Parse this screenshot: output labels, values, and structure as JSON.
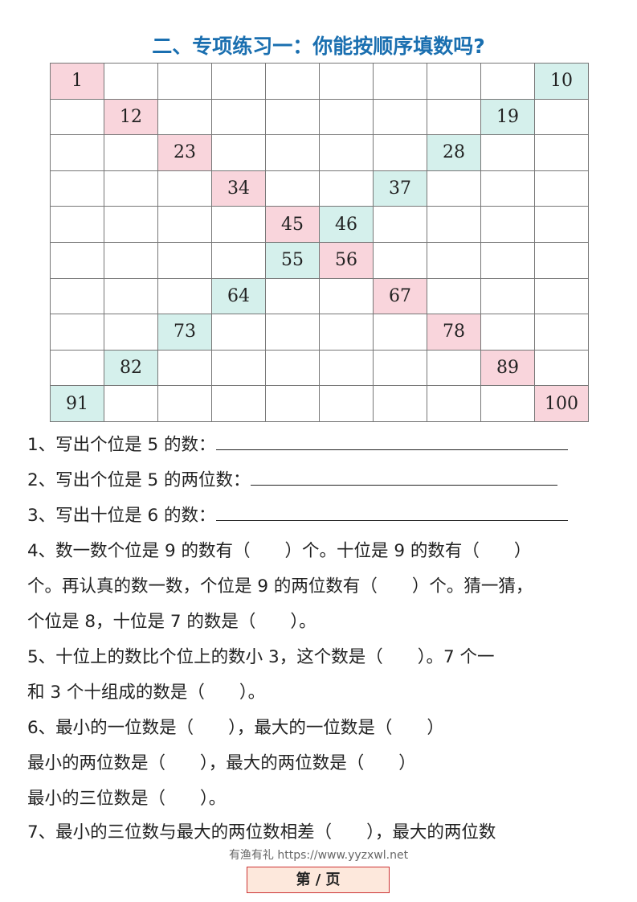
{
  "title": "二、专项练习一：你能按顺序填数吗?",
  "grid": {
    "rows": [
      [
        "1",
        "",
        "",
        "",
        "",
        "",
        "",
        "",
        "",
        "10"
      ],
      [
        "",
        "12",
        "",
        "",
        "",
        "",
        "",
        "",
        "19",
        ""
      ],
      [
        "",
        "",
        "23",
        "",
        "",
        "",
        "",
        "28",
        "",
        ""
      ],
      [
        "",
        "",
        "",
        "34",
        "",
        "",
        "37",
        "",
        "",
        ""
      ],
      [
        "",
        "",
        "",
        "",
        "45",
        "46",
        "",
        "",
        "",
        ""
      ],
      [
        "",
        "",
        "",
        "",
        "55",
        "56",
        "",
        "",
        "",
        ""
      ],
      [
        "",
        "",
        "",
        "64",
        "",
        "",
        "67",
        "",
        "",
        ""
      ],
      [
        "",
        "",
        "73",
        "",
        "",
        "",
        "",
        "78",
        "",
        ""
      ],
      [
        "",
        "82",
        "",
        "",
        "",
        "",
        "",
        "",
        "89",
        ""
      ],
      [
        "91",
        "",
        "",
        "",
        "",
        "",
        "",
        "",
        "",
        "100"
      ]
    ],
    "colors": {
      "diagonal": "#f9d5dc",
      "anti_diagonal": "#d5f0ec"
    }
  },
  "questions": [
    "1、写出个位是 5 的数：",
    "2、写出个位是 5 的两位数：",
    "3、写出十位是 6 的数：",
    "4、数一数个位是 9 的数有（　　）个。十位是 9 的数有（　　）",
    "个。再认真的数一数，个位是 9 的两位数有（　　）个。猜一猜，",
    "个位是 8，十位是 7 的数是（　　）。",
    "5、十位上的数比个位上的数小 3，这个数是（　　）。7 个一",
    "和 3 个十组成的数是（　　）。",
    "6、最小的一位数是（　　），最大的一位数是（　　）",
    "最小的两位数是（　　），最大的两位数是（　　）",
    "最小的三位数是（　　）。",
    "7、最小的三位数与最大的两位数相差（　　），最大的两位数"
  ],
  "footer": {
    "watermark": "有渔有礼 https://www.yyzxwl.net",
    "page_label": "第 / 页"
  }
}
